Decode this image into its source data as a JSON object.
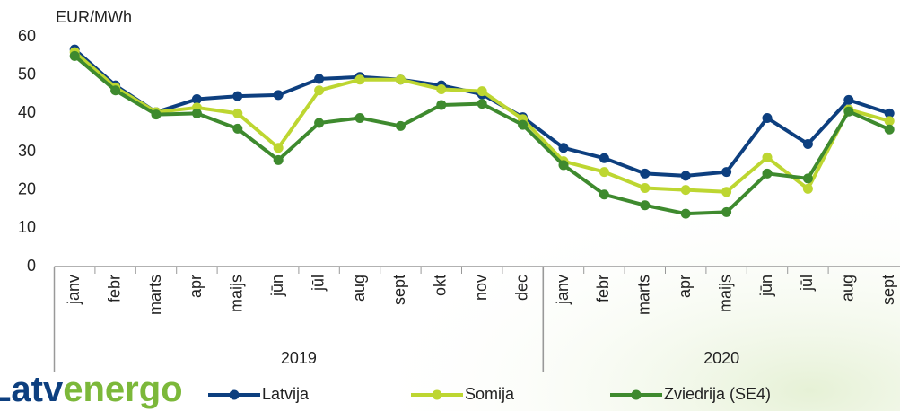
{
  "chart_data": {
    "type": "line",
    "y_axis_label": "EUR/MWh",
    "categories": [
      "janv",
      "febr",
      "marts",
      "apr",
      "maijs",
      "jūn",
      "jūl",
      "aug",
      "sept",
      "okt",
      "nov",
      "dec",
      "janv",
      "febr",
      "marts",
      "apr",
      "maijs",
      "jūn",
      "jūl",
      "aug",
      "sept"
    ],
    "groups": [
      {
        "name": "2019",
        "size": 12
      },
      {
        "name": "2020",
        "size": 9
      }
    ],
    "series": [
      {
        "name": "Latvija",
        "color": "#0d3f7f",
        "values": [
          56.7,
          47.3,
          40.3,
          43.7,
          44.5,
          44.8,
          49.0,
          49.5,
          48.8,
          47.3,
          45.0,
          39.0,
          31.0,
          28.3,
          24.3,
          23.7,
          24.7,
          38.8,
          32.0,
          43.5,
          40.0
        ]
      },
      {
        "name": "Somija",
        "color": "#bdd631",
        "values": [
          56.0,
          46.8,
          40.3,
          41.5,
          40.0,
          31.0,
          46.0,
          48.8,
          48.8,
          46.3,
          45.8,
          38.5,
          27.5,
          24.7,
          20.5,
          20.0,
          19.5,
          28.5,
          20.3,
          41.0,
          38.0
        ]
      },
      {
        "name": "Zviedrija (SE4)",
        "color": "#3e8a2e",
        "values": [
          55.0,
          46.0,
          39.7,
          40.0,
          36.0,
          27.8,
          37.5,
          38.8,
          36.7,
          42.2,
          42.5,
          37.0,
          26.5,
          18.8,
          16.0,
          13.8,
          14.2,
          24.3,
          23.0,
          40.5,
          35.8
        ]
      }
    ],
    "ylim": [
      0,
      60
    ],
    "yticks": [
      0,
      10,
      20,
      30,
      40,
      50,
      60
    ],
    "grid": false,
    "legend": "bottom",
    "logo": [
      "Latv",
      "energo"
    ]
  }
}
